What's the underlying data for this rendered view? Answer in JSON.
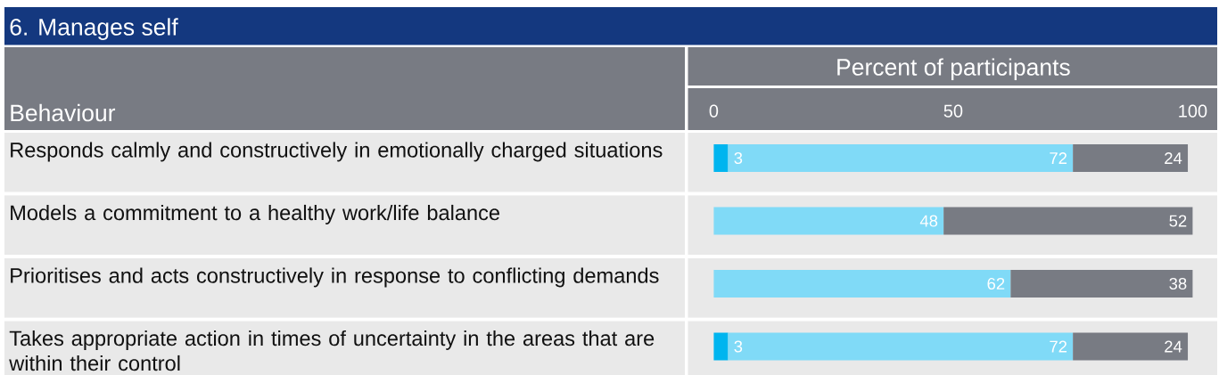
{
  "chart_data": {
    "type": "bar",
    "orientation": "horizontal",
    "stacked": true,
    "title": "6. Manages self",
    "xlabel": "Percent of participants",
    "ylabel": "Behaviour",
    "categories": [
      "Responds calmly and constructively in emotionally charged situations",
      "Models a commitment to a healthy work/life balance",
      "Prioritises and acts constructively in response to conflicting demands",
      "Takes appropriate action in times of uncertainty in the areas that are within their control"
    ],
    "series": [
      {
        "color": "#00b5ef",
        "values": [
          3,
          0,
          0,
          3
        ],
        "value_labels": [
          "3",
          null,
          null,
          "3"
        ]
      },
      {
        "color": "#80daf7",
        "values": [
          72,
          48,
          62,
          72
        ],
        "value_labels": [
          "72",
          "48",
          "62",
          "72"
        ]
      },
      {
        "color": "#787b83",
        "values": [
          24,
          52,
          38,
          24
        ],
        "value_labels": [
          "24",
          "52",
          "38",
          "24"
        ]
      }
    ],
    "xlim": [
      0,
      100
    ],
    "xticks": [
      0,
      50,
      100
    ]
  }
}
